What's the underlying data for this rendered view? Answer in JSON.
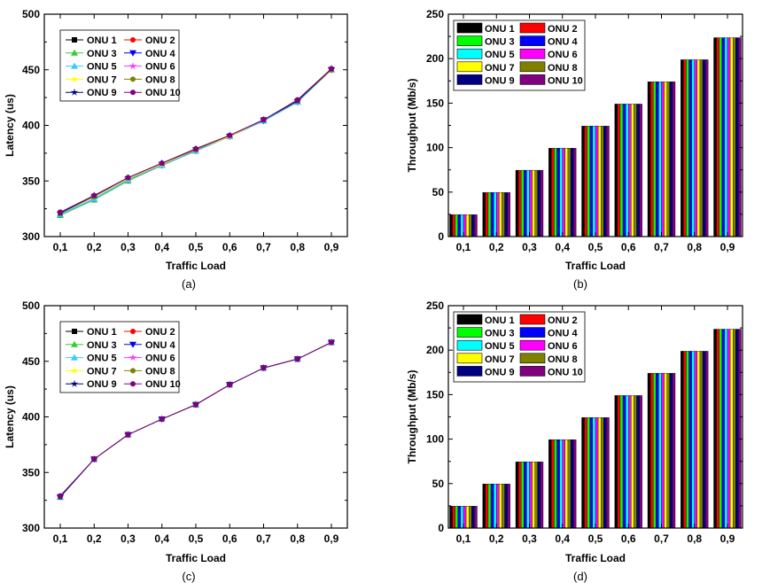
{
  "series_names": [
    "ONU 1",
    "ONU 2",
    "ONU 3",
    "ONU 4",
    "ONU 5",
    "ONU 6",
    "ONU 7",
    "ONU 8",
    "ONU 9",
    "ONU 10"
  ],
  "line_colors": [
    "#000000",
    "#ff0000",
    "#33cc33",
    "#0000ee",
    "#33ccff",
    "#ff33ff",
    "#ffff00",
    "#808000",
    "#000080",
    "#800080"
  ],
  "bar_colors": [
    "#000000",
    "#ff0000",
    "#00ff00",
    "#0000ff",
    "#00ffff",
    "#ff00ff",
    "#ffff00",
    "#808000",
    "#000080",
    "#800080"
  ],
  "markers": [
    "square",
    "circle",
    "triangle-up",
    "triangle-down",
    "diamond-like",
    "star",
    "star",
    "circle",
    "star",
    "circle"
  ],
  "chart_data": [
    {
      "type": "line",
      "caption": "(a)",
      "xlabel": "Traffic Load",
      "ylabel": "Latency (us)",
      "categories": [
        "0,1",
        "0,2",
        "0,3",
        "0,4",
        "0,5",
        "0,6",
        "0,7",
        "0,8",
        "0,9"
      ],
      "ylim": [
        300,
        500
      ],
      "yticks": [
        300,
        350,
        400,
        450,
        500
      ],
      "legend": "top-left",
      "series": [
        {
          "name": "ONU 1",
          "values": [
            321,
            336,
            352,
            365,
            378,
            390,
            405,
            422,
            450
          ]
        },
        {
          "name": "ONU 2",
          "values": [
            321,
            336,
            352,
            365,
            378,
            390,
            405,
            422,
            450
          ]
        },
        {
          "name": "ONU 3",
          "values": [
            319,
            333,
            350,
            364,
            377,
            390,
            404,
            421,
            450
          ]
        },
        {
          "name": "ONU 4",
          "values": [
            320,
            334,
            351,
            364,
            377,
            390,
            404,
            421,
            450
          ]
        },
        {
          "name": "ONU 5",
          "values": [
            320,
            334,
            351,
            364,
            377,
            390,
            404,
            421,
            450
          ]
        },
        {
          "name": "ONU 6",
          "values": [
            321,
            336,
            352,
            365,
            378,
            390,
            405,
            422,
            450
          ]
        },
        {
          "name": "ONU 7",
          "values": [
            321,
            336,
            352,
            365,
            378,
            390,
            405,
            422,
            450
          ]
        },
        {
          "name": "ONU 8",
          "values": [
            321,
            336,
            353,
            366,
            378,
            391,
            405,
            422,
            450
          ]
        },
        {
          "name": "ONU 9",
          "values": [
            321,
            337,
            353,
            366,
            379,
            391,
            405,
            422,
            451
          ]
        },
        {
          "name": "ONU 10",
          "values": [
            322,
            337,
            353,
            366,
            379,
            391,
            405,
            423,
            451
          ]
        }
      ]
    },
    {
      "type": "bar",
      "caption": "(b)",
      "xlabel": "Traffic Load",
      "ylabel": "Throughput (Mb/s)",
      "categories": [
        "0,1",
        "0,2",
        "0,3",
        "0,4",
        "0,5",
        "0,6",
        "0,7",
        "0,8",
        "0,9"
      ],
      "ylim": [
        0,
        250
      ],
      "yticks": [
        0,
        50,
        100,
        150,
        200,
        250
      ],
      "legend": "top-left",
      "series": [
        {
          "name": "ONU 1",
          "values": [
            24.6,
            49.6,
            74.6,
            99.4,
            124.2,
            149.0,
            174.0,
            198.8,
            223.6
          ]
        },
        {
          "name": "ONU 2",
          "values": [
            24.6,
            49.6,
            74.6,
            99.4,
            124.2,
            149.0,
            174.0,
            198.8,
            223.6
          ]
        },
        {
          "name": "ONU 3",
          "values": [
            24.6,
            49.6,
            74.6,
            99.4,
            124.2,
            149.0,
            174.0,
            198.8,
            223.6
          ]
        },
        {
          "name": "ONU 4",
          "values": [
            24.6,
            49.6,
            74.6,
            99.4,
            124.2,
            149.0,
            174.0,
            198.8,
            223.6
          ]
        },
        {
          "name": "ONU 5",
          "values": [
            24.6,
            49.6,
            74.6,
            99.4,
            124.2,
            149.0,
            174.0,
            198.8,
            223.6
          ]
        },
        {
          "name": "ONU 6",
          "values": [
            24.6,
            49.6,
            74.6,
            99.4,
            124.2,
            149.0,
            174.0,
            198.8,
            223.6
          ]
        },
        {
          "name": "ONU 7",
          "values": [
            24.6,
            49.6,
            74.6,
            99.4,
            124.2,
            149.0,
            174.0,
            198.8,
            223.6
          ]
        },
        {
          "name": "ONU 8",
          "values": [
            24.6,
            49.6,
            74.6,
            99.4,
            124.2,
            149.0,
            174.0,
            198.8,
            223.6
          ]
        },
        {
          "name": "ONU 9",
          "values": [
            24.6,
            49.6,
            74.6,
            99.4,
            124.2,
            149.0,
            174.0,
            198.8,
            223.6
          ]
        },
        {
          "name": "ONU 10",
          "values": [
            24.6,
            49.6,
            74.6,
            99.4,
            124.2,
            149.0,
            174.0,
            198.8,
            223.6
          ]
        }
      ]
    },
    {
      "type": "line",
      "caption": "(c)",
      "xlabel": "Traffic Load",
      "ylabel": "Latency (us)",
      "categories": [
        "0,1",
        "0,2",
        "0,3",
        "0,4",
        "0,5",
        "0,6",
        "0,7",
        "0,8",
        "0,9"
      ],
      "ylim": [
        300,
        500
      ],
      "yticks": [
        300,
        350,
        400,
        450,
        500
      ],
      "legend": "top-left",
      "series": [
        {
          "name": "ONU 1",
          "values": [
            328,
            362,
            384,
            398,
            411,
            429,
            444,
            452,
            467
          ]
        },
        {
          "name": "ONU 2",
          "values": [
            328,
            362,
            384,
            398,
            411,
            429,
            444,
            452,
            467
          ]
        },
        {
          "name": "ONU 3",
          "values": [
            328,
            362,
            384,
            398,
            411,
            429,
            444,
            452,
            467
          ]
        },
        {
          "name": "ONU 4",
          "values": [
            328,
            362,
            384,
            398,
            411,
            429,
            444,
            452,
            467
          ]
        },
        {
          "name": "ONU 5",
          "values": [
            328,
            362,
            384,
            398,
            411,
            429,
            444,
            452,
            467
          ]
        },
        {
          "name": "ONU 6",
          "values": [
            328,
            362,
            384,
            398,
            411,
            429,
            444,
            452,
            467
          ]
        },
        {
          "name": "ONU 7",
          "values": [
            328,
            362,
            384,
            398,
            411,
            429,
            444,
            452,
            467
          ]
        },
        {
          "name": "ONU 8",
          "values": [
            328,
            362,
            384,
            398,
            411,
            429,
            444,
            452,
            467
          ]
        },
        {
          "name": "ONU 9",
          "values": [
            328,
            362,
            384,
            398,
            411,
            429,
            444,
            452,
            467
          ]
        },
        {
          "name": "ONU 10",
          "values": [
            329,
            362,
            384,
            398,
            411,
            429,
            444,
            452,
            467
          ]
        }
      ]
    },
    {
      "type": "bar",
      "caption": "(d)",
      "xlabel": "Traffic Load",
      "ylabel": "Throughput (Mb/s)",
      "categories": [
        "0,1",
        "0,2",
        "0,3",
        "0,4",
        "0,5",
        "0,6",
        "0,7",
        "0,8",
        "0,9"
      ],
      "ylim": [
        0,
        250
      ],
      "yticks": [
        0,
        50,
        100,
        150,
        200,
        250
      ],
      "legend": "top-left",
      "series": [
        {
          "name": "ONU 1",
          "values": [
            24.6,
            49.6,
            74.4,
            99.4,
            124.2,
            149.0,
            174.0,
            198.8,
            223.6
          ]
        },
        {
          "name": "ONU 2",
          "values": [
            24.6,
            49.6,
            74.4,
            99.4,
            124.2,
            149.0,
            174.0,
            198.8,
            223.6
          ]
        },
        {
          "name": "ONU 3",
          "values": [
            24.6,
            49.6,
            74.4,
            99.4,
            124.2,
            149.0,
            174.0,
            198.8,
            223.6
          ]
        },
        {
          "name": "ONU 4",
          "values": [
            24.6,
            49.6,
            74.4,
            99.4,
            124.2,
            149.0,
            174.0,
            198.8,
            223.6
          ]
        },
        {
          "name": "ONU 5",
          "values": [
            24.6,
            49.6,
            74.4,
            99.4,
            124.2,
            149.0,
            174.0,
            198.8,
            223.6
          ]
        },
        {
          "name": "ONU 6",
          "values": [
            24.6,
            49.6,
            74.4,
            99.4,
            124.2,
            149.0,
            174.0,
            198.8,
            223.6
          ]
        },
        {
          "name": "ONU 7",
          "values": [
            24.6,
            49.6,
            74.4,
            99.4,
            124.2,
            149.0,
            174.0,
            198.8,
            223.6
          ]
        },
        {
          "name": "ONU 8",
          "values": [
            24.6,
            49.6,
            74.4,
            99.4,
            124.2,
            149.0,
            174.0,
            198.8,
            223.6
          ]
        },
        {
          "name": "ONU 9",
          "values": [
            24.6,
            49.6,
            74.4,
            99.4,
            124.2,
            149.0,
            174.0,
            198.8,
            223.6
          ]
        },
        {
          "name": "ONU 10",
          "values": [
            24.6,
            49.6,
            74.4,
            99.4,
            124.2,
            149.0,
            174.0,
            198.8,
            223.6
          ]
        }
      ]
    }
  ]
}
